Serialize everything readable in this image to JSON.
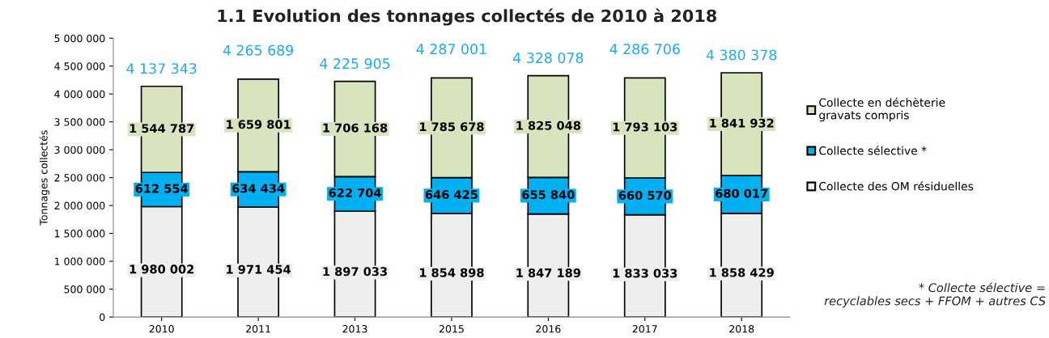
{
  "chart_data": {
    "type": "bar",
    "title": "1.1 Evolution des tonnages collectés de 2010 à 2018",
    "ylabel": "Tonnages collectés",
    "categories": [
      "2010",
      "2011",
      "2013",
      "2015",
      "2016",
      "2017",
      "2018"
    ],
    "stacked": true,
    "series": [
      {
        "name": "Collecte des OM résiduelles",
        "color": "#eeeeee",
        "values": [
          1980002,
          1971454,
          1897033,
          1854898,
          1847189,
          1833033,
          1858429
        ],
        "value_labels": [
          "1 980 002",
          "1 971 454",
          "1 897 033",
          "1 854 898",
          "1 847 189",
          "1 833 033",
          "1 858 429"
        ]
      },
      {
        "name": "Collecte sélective *",
        "color": "#00b0f0",
        "values": [
          612554,
          634434,
          622704,
          646425,
          655840,
          660570,
          680017
        ],
        "value_labels": [
          "612 554",
          "634 434",
          "622 704",
          "646 425",
          "655 840",
          "660 570",
          "680 017"
        ]
      },
      {
        "name": "Collecte en déchèterie\ngravats compris",
        "color": "#d7e4bd",
        "values": [
          1544787,
          1659801,
          1706168,
          1785678,
          1825048,
          1793103,
          1841932
        ],
        "value_labels": [
          "1 544 787",
          "1 659 801",
          "1 706 168",
          "1 785 678",
          "1 825 048",
          "1 793 103",
          "1 841 932"
        ]
      }
    ],
    "totals": [
      "4 137 343",
      "4 265 689",
      "4 225 905",
      "4 287 001",
      "4 328 078",
      "4 286 706",
      "4 380 378"
    ],
    "ylim": [
      0,
      5000000
    ],
    "yticks": [
      {
        "value": 0,
        "label": "0"
      },
      {
        "value": 500000,
        "label": "500 000"
      },
      {
        "value": 1000000,
        "label": "1 000 000"
      },
      {
        "value": 1500000,
        "label": "1 500 000"
      },
      {
        "value": 2000000,
        "label": "2 000 000"
      },
      {
        "value": 2500000,
        "label": "2 500 000"
      },
      {
        "value": 3000000,
        "label": "3 000 000"
      },
      {
        "value": 3500000,
        "label": "3 500 000"
      },
      {
        "value": 4000000,
        "label": "4 000 000"
      },
      {
        "value": 4500000,
        "label": "4 500 000"
      },
      {
        "value": 5000000,
        "label": "5 000 000"
      }
    ],
    "grid": false,
    "legend": "right",
    "annotations": [
      "* Collecte sélective =\nrecyclables secs + FFOM + autres CS"
    ]
  }
}
